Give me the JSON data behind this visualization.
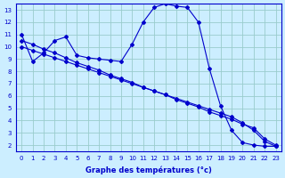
{
  "xlabel": "Graphe des températures (°c)",
  "bg_color": "#cceeff",
  "line_color": "#0000cc",
  "grid_color": "#99cccc",
  "ylim": [
    1.5,
    13.5
  ],
  "xlim": [
    -0.5,
    23.5
  ],
  "yticks": [
    2,
    3,
    4,
    5,
    6,
    7,
    8,
    9,
    10,
    11,
    12,
    13
  ],
  "xticks": [
    0,
    1,
    2,
    3,
    4,
    5,
    6,
    7,
    8,
    9,
    10,
    11,
    12,
    13,
    14,
    15,
    16,
    17,
    18,
    19,
    20,
    21,
    22,
    23
  ],
  "line1_x": [
    0,
    1,
    2,
    3,
    4,
    5,
    6,
    7,
    8,
    9,
    10,
    11,
    12,
    13,
    14,
    15,
    16,
    17,
    18,
    19,
    20,
    21,
    22,
    23
  ],
  "line1_y": [
    11.0,
    8.8,
    9.5,
    10.5,
    10.8,
    9.3,
    9.1,
    9.0,
    8.9,
    8.8,
    10.2,
    12.0,
    13.2,
    13.5,
    13.3,
    13.2,
    12.0,
    8.2,
    5.2,
    3.2,
    2.2,
    2.0,
    1.9,
    1.9
  ],
  "line2_x": [
    0,
    1,
    2,
    3,
    4,
    5,
    6,
    7,
    8,
    9,
    10,
    11,
    12,
    13,
    14,
    15,
    16,
    17,
    18,
    19,
    20,
    21,
    22,
    23
  ],
  "line2_y": [
    10.5,
    10.2,
    9.8,
    9.5,
    9.1,
    8.7,
    8.4,
    8.1,
    7.7,
    7.4,
    7.1,
    6.7,
    6.4,
    6.1,
    5.7,
    5.4,
    5.1,
    4.7,
    4.4,
    4.1,
    3.7,
    3.4,
    2.5,
    2.0
  ],
  "line3_x": [
    0,
    1,
    2,
    3,
    4,
    5,
    6,
    7,
    8,
    9,
    10,
    11,
    12,
    13,
    14,
    15,
    16,
    17,
    18,
    19,
    20,
    21,
    22,
    23
  ],
  "line3_y": [
    10.0,
    9.7,
    9.4,
    9.1,
    8.8,
    8.5,
    8.2,
    7.9,
    7.6,
    7.3,
    7.0,
    6.7,
    6.4,
    6.1,
    5.8,
    5.5,
    5.2,
    4.9,
    4.6,
    4.3,
    3.8,
    3.2,
    2.3,
    1.9
  ]
}
